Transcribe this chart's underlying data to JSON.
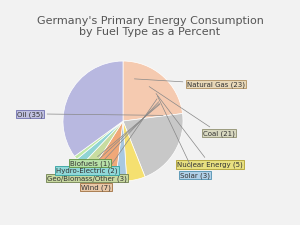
{
  "title": "Germany's Primary Energy Consumption\nby Fuel Type as a Percent",
  "labels": [
    "Natural Gas (23)",
    "Coal (21)",
    "Nuclear Energy (5)",
    "Solar (3)",
    "Wind (7)",
    "Geo/Biomass/Other (3)",
    "Hydro-Electric (2)",
    "Biofuels (1)",
    "Oil (35)"
  ],
  "values": [
    23,
    21,
    5,
    3,
    7,
    3,
    2,
    1,
    35
  ],
  "colors": [
    "#f5cab0",
    "#c8c8c8",
    "#f5e070",
    "#a8c8e0",
    "#f0a878",
    "#c8dca0",
    "#90d4d4",
    "#c0e8a8",
    "#b8b8e0"
  ],
  "startangle": 90,
  "background_color": "#f2f2f2",
  "title_fontsize": 8,
  "label_fontsize": 5,
  "box_facecolors": {
    "Natural Gas (23)": "#e8d8b8",
    "Coal (21)": "#d8d8c0",
    "Nuclear Energy (5)": "#e8e080",
    "Solar (3)": "#b0d0e8",
    "Wind (7)": "#e8c8a8",
    "Geo/Biomass/Other (3)": "#c8d8a0",
    "Hydro-Electric (2)": "#90d8d8",
    "Biofuels (1)": "#b8e0a8",
    "Oil (35)": "#c0c0e0"
  },
  "box_edgecolors": {
    "Natural Gas (23)": "#b09060",
    "Coal (21)": "#909070",
    "Nuclear Energy (5)": "#b0a030",
    "Solar (3)": "#5090b0",
    "Wind (7)": "#a07040",
    "Geo/Biomass/Other (3)": "#708050",
    "Hydro-Electric (2)": "#30a0a0",
    "Biofuels (1)": "#609040",
    "Oil (35)": "#7070b0"
  }
}
